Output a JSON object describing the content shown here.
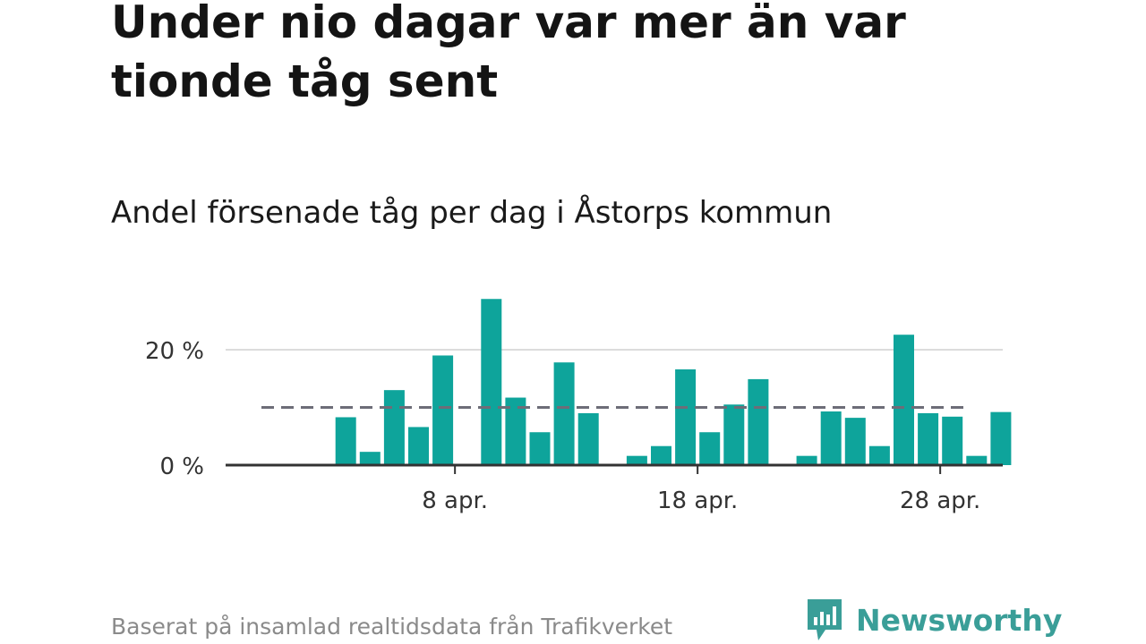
{
  "title": "Under nio dagar var mer än var tionde tåg sent",
  "subtitle": "Andel försenade tåg per dag i Åstorps kommun",
  "footer": "Baserat på insamlad realtidsdata från Trafikverket",
  "brand": {
    "name": "Newsworthy",
    "icon": "newsworthy-logo-icon"
  },
  "colors": {
    "bar": "#0ea49b",
    "reference": "#6d6d78",
    "grid": "#dcdcdc",
    "axis": "#333333",
    "brand": "#3a9e98"
  },
  "chart_data": {
    "type": "bar",
    "title": "Andel försenade tåg per dag i Åstorps kommun",
    "x_ticks": [
      {
        "day": 8,
        "label": "8 apr."
      },
      {
        "day": 18,
        "label": "18 apr."
      },
      {
        "day": 28,
        "label": "28 apr."
      }
    ],
    "y_ticks": [
      {
        "value": 0,
        "label": "0 %"
      },
      {
        "value": 20,
        "label": "20 %"
      }
    ],
    "ylim": [
      0,
      30
    ],
    "reference_line": 10,
    "grid": true,
    "values": [
      {
        "day": 1,
        "value": 0
      },
      {
        "day": 2,
        "value": 0
      },
      {
        "day": 3,
        "value": 8.3
      },
      {
        "day": 4,
        "value": 2.3
      },
      {
        "day": 5,
        "value": 13
      },
      {
        "day": 6,
        "value": 6.6
      },
      {
        "day": 7,
        "value": 19
      },
      {
        "day": 8,
        "value": 0
      },
      {
        "day": 9,
        "value": 28.8
      },
      {
        "day": 10,
        "value": 11.7
      },
      {
        "day": 11,
        "value": 5.7
      },
      {
        "day": 12,
        "value": 17.8
      },
      {
        "day": 13,
        "value": 9
      },
      {
        "day": 14,
        "value": 0
      },
      {
        "day": 15,
        "value": 1.6
      },
      {
        "day": 16,
        "value": 3.3
      },
      {
        "day": 17,
        "value": 16.6
      },
      {
        "day": 18,
        "value": 5.7
      },
      {
        "day": 19,
        "value": 10.5
      },
      {
        "day": 20,
        "value": 14.9
      },
      {
        "day": 21,
        "value": 0
      },
      {
        "day": 22,
        "value": 1.6
      },
      {
        "day": 23,
        "value": 9.3
      },
      {
        "day": 24,
        "value": 8.2
      },
      {
        "day": 25,
        "value": 3.3
      },
      {
        "day": 26,
        "value": 22.6
      },
      {
        "day": 27,
        "value": 9
      },
      {
        "day": 28,
        "value": 8.4
      },
      {
        "day": 29,
        "value": 1.6
      },
      {
        "day": 30,
        "value": 9.2
      }
    ]
  }
}
